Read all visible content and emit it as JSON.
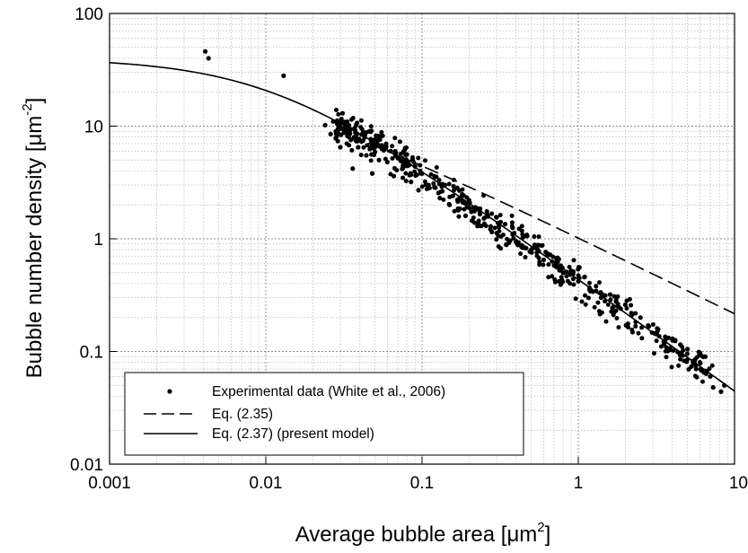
{
  "chart_data": {
    "type": "scatter",
    "xscale": "log",
    "yscale": "log",
    "xlim": [
      0.001,
      10
    ],
    "ylim": [
      0.01,
      100
    ],
    "grid": true,
    "xlabel": {
      "main": "Average bubble area [",
      "unit": "μm",
      "sup": "2",
      "close": "]"
    },
    "ylabel": {
      "main": "Bubble number density [",
      "unit": "μm",
      "sup": "-2",
      "close": "]"
    },
    "xticks": [
      {
        "value": 0.001,
        "label": "0.001"
      },
      {
        "value": 0.01,
        "label": "0.01"
      },
      {
        "value": 0.1,
        "label": "0.1"
      },
      {
        "value": 1,
        "label": "1"
      },
      {
        "value": 10,
        "label": "10"
      }
    ],
    "yticks": [
      {
        "value": 0.01,
        "label": "0.01"
      },
      {
        "value": 0.1,
        "label": "0.1"
      },
      {
        "value": 1,
        "label": "1"
      },
      {
        "value": 10,
        "label": "10"
      },
      {
        "value": 100,
        "label": "100"
      }
    ],
    "legend_position": "lower-left",
    "series": [
      {
        "name": "Experimental data (White et al., 2006)",
        "style": "points",
        "trend": {
          "k": 0.44,
          "p": 0.995,
          "spread": 0.13
        },
        "points": [
          [
            0.0041,
            46
          ],
          [
            0.0043,
            40
          ],
          [
            0.013,
            28
          ],
          [
            0.024,
            10.2
          ],
          [
            0.026,
            8.5
          ],
          [
            0.027,
            11
          ],
          [
            0.028,
            7.8
          ],
          [
            0.029,
            9.5
          ],
          [
            0.03,
            6.5
          ],
          [
            0.031,
            13
          ],
          [
            0.033,
            7.0
          ],
          [
            0.034,
            10.2
          ],
          [
            0.036,
            4.2
          ],
          [
            0.037,
            8.0
          ],
          [
            0.039,
            6.5
          ],
          [
            0.041,
            7.3
          ],
          [
            0.044,
            5.5
          ],
          [
            0.046,
            9.0
          ],
          [
            0.048,
            3.8
          ],
          [
            0.05,
            6.8
          ],
          [
            0.053,
            5.0
          ],
          [
            0.056,
            8.2
          ],
          [
            0.06,
            4.8
          ],
          [
            0.063,
            6.0
          ],
          [
            0.066,
            3.6
          ],
          [
            0.07,
            5.2
          ],
          [
            0.075,
            4.2
          ],
          [
            0.08,
            5.6
          ],
          [
            0.085,
            3.2
          ],
          [
            0.09,
            4.4
          ],
          [
            0.095,
            2.7
          ],
          [
            0.1,
            3.8
          ],
          [
            0.11,
            3.0
          ],
          [
            0.12,
            3.6
          ],
          [
            0.13,
            2.3
          ],
          [
            0.14,
            3.0
          ],
          [
            0.15,
            2.0
          ],
          [
            0.16,
            2.7
          ],
          [
            0.17,
            1.85
          ],
          [
            0.18,
            2.4
          ],
          [
            0.19,
            1.6
          ],
          [
            0.2,
            2.2
          ],
          [
            0.21,
            1.45
          ],
          [
            0.22,
            1.9
          ],
          [
            0.24,
            1.3
          ],
          [
            0.26,
            1.75
          ],
          [
            0.28,
            1.15
          ],
          [
            0.3,
            1.55
          ],
          [
            0.32,
            1.05
          ],
          [
            0.34,
            1.35
          ],
          [
            0.36,
            0.92
          ],
          [
            0.38,
            1.25
          ],
          [
            0.4,
            0.95
          ],
          [
            0.45,
            1.05
          ],
          [
            0.5,
            0.8
          ],
          [
            0.55,
            0.88
          ],
          [
            0.6,
            0.65
          ],
          [
            0.65,
            0.72
          ],
          [
            0.7,
            0.58
          ],
          [
            0.75,
            0.66
          ],
          [
            0.8,
            0.5
          ],
          [
            0.9,
            0.52
          ],
          [
            1.0,
            0.42
          ],
          [
            1.1,
            0.46
          ],
          [
            1.2,
            0.35
          ],
          [
            1.3,
            0.38
          ],
          [
            1.4,
            0.3
          ],
          [
            1.6,
            0.32
          ],
          [
            1.8,
            0.25
          ],
          [
            2.0,
            0.26
          ],
          [
            2.2,
            0.21
          ],
          [
            2.5,
            0.2
          ],
          [
            2.8,
            0.17
          ],
          [
            3.2,
            0.16
          ],
          [
            3.6,
            0.135
          ],
          [
            4.0,
            0.13
          ],
          [
            4.5,
            0.115
          ],
          [
            5.0,
            0.105
          ],
          [
            5.6,
            0.085
          ],
          [
            6.0,
            0.08
          ],
          [
            6.5,
            0.09
          ],
          [
            7.0,
            0.06
          ],
          [
            7.3,
            0.048
          ],
          [
            8.2,
            0.044
          ],
          [
            8.6,
            0.05
          ]
        ]
      },
      {
        "name": "Eq. (2.35)",
        "style": "dashed",
        "curve": {
          "kind": "saturating_power",
          "N0": 40,
          "k": 1.04,
          "p": 0.68,
          "from": 0.045,
          "to": 10
        }
      },
      {
        "name": "Eq. (2.37) (present model)",
        "style": "solid",
        "curve": {
          "kind": "saturating_power",
          "N0": 40,
          "k": 0.44,
          "p": 0.995,
          "from": 0.001,
          "to": 10
        }
      }
    ]
  }
}
